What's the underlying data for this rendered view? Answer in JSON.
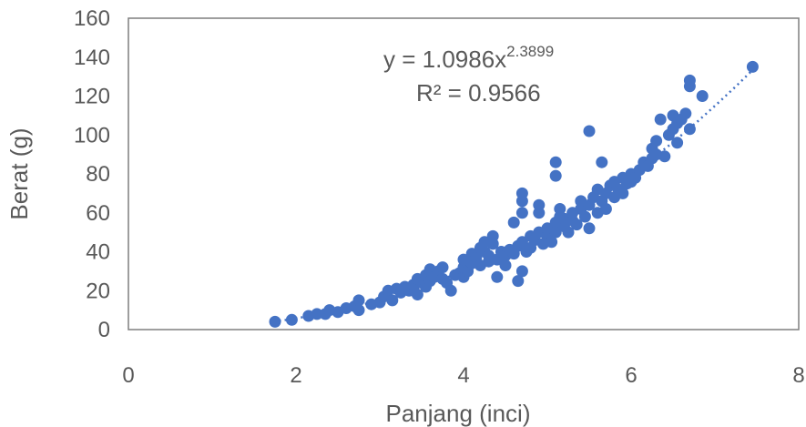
{
  "chart_data": {
    "type": "scatter",
    "title": "",
    "xlabel": "Panjang (inci)",
    "ylabel": "Berat (g)",
    "xlim": [
      0,
      8
    ],
    "ylim": [
      0,
      160
    ],
    "x_ticks": [
      "0",
      "2",
      "4",
      "6",
      "8"
    ],
    "y_ticks": [
      "0",
      "20",
      "40",
      "60",
      "80",
      "100",
      "120",
      "140",
      "160"
    ],
    "grid": false,
    "legend": "none",
    "marker_color": "#4472C4",
    "trendline": {
      "type": "power",
      "coefficient": 1.0986,
      "exponent": 2.3899,
      "x_range": [
        1.8,
        7.45
      ],
      "style": "dotted",
      "color": "#4472C4",
      "equation_label": {
        "base": "y = 1.0986x",
        "sup": "2.3899"
      },
      "r2_label": "R² = 0.9566"
    },
    "series": [
      {
        "points": [
          [
            1.75,
            4
          ],
          [
            1.95,
            5
          ],
          [
            2.15,
            7
          ],
          [
            2.25,
            8
          ],
          [
            2.35,
            8
          ],
          [
            2.4,
            10
          ],
          [
            2.5,
            9
          ],
          [
            2.6,
            11
          ],
          [
            2.7,
            12
          ],
          [
            2.75,
            10
          ],
          [
            2.75,
            15
          ],
          [
            2.9,
            13
          ],
          [
            3.0,
            14
          ],
          [
            3.05,
            17
          ],
          [
            3.1,
            20
          ],
          [
            3.15,
            15
          ],
          [
            3.2,
            21
          ],
          [
            3.25,
            19
          ],
          [
            3.3,
            22
          ],
          [
            3.35,
            20
          ],
          [
            3.4,
            23
          ],
          [
            3.45,
            18
          ],
          [
            3.45,
            26
          ],
          [
            3.5,
            24
          ],
          [
            3.55,
            22
          ],
          [
            3.55,
            28
          ],
          [
            3.6,
            25
          ],
          [
            3.6,
            31
          ],
          [
            3.65,
            27
          ],
          [
            3.7,
            30
          ],
          [
            3.75,
            26
          ],
          [
            3.75,
            32
          ],
          [
            3.8,
            24
          ],
          [
            3.85,
            20
          ],
          [
            3.9,
            28
          ],
          [
            3.95,
            29
          ],
          [
            4.0,
            27
          ],
          [
            4.0,
            32
          ],
          [
            4.0,
            36
          ],
          [
            4.05,
            30
          ],
          [
            4.1,
            34
          ],
          [
            4.1,
            39
          ],
          [
            4.15,
            37
          ],
          [
            4.2,
            33
          ],
          [
            4.2,
            42
          ],
          [
            4.25,
            40
          ],
          [
            4.25,
            45
          ],
          [
            4.3,
            35
          ],
          [
            4.3,
            38
          ],
          [
            4.35,
            44
          ],
          [
            4.35,
            48
          ],
          [
            4.4,
            36
          ],
          [
            4.4,
            27
          ],
          [
            4.45,
            40
          ],
          [
            4.5,
            38
          ],
          [
            4.5,
            33
          ],
          [
            4.55,
            41
          ],
          [
            4.6,
            39
          ],
          [
            4.6,
            55
          ],
          [
            4.65,
            43
          ],
          [
            4.65,
            25
          ],
          [
            4.7,
            45
          ],
          [
            4.7,
            60
          ],
          [
            4.7,
            66
          ],
          [
            4.7,
            70
          ],
          [
            4.7,
            30
          ],
          [
            4.75,
            40
          ],
          [
            4.8,
            48
          ],
          [
            4.8,
            42
          ],
          [
            4.85,
            46
          ],
          [
            4.9,
            50
          ],
          [
            4.9,
            60
          ],
          [
            4.9,
            64
          ],
          [
            4.95,
            44
          ],
          [
            5.0,
            48
          ],
          [
            5.0,
            52
          ],
          [
            5.05,
            45
          ],
          [
            5.1,
            55
          ],
          [
            5.1,
            50
          ],
          [
            5.1,
            86
          ],
          [
            5.1,
            79
          ],
          [
            5.15,
            58
          ],
          [
            5.15,
            62
          ],
          [
            5.2,
            53
          ],
          [
            5.2,
            57
          ],
          [
            5.25,
            50
          ],
          [
            5.3,
            56
          ],
          [
            5.3,
            60
          ],
          [
            5.35,
            54
          ],
          [
            5.4,
            62
          ],
          [
            5.4,
            66
          ],
          [
            5.45,
            58
          ],
          [
            5.5,
            64
          ],
          [
            5.5,
            52
          ],
          [
            5.5,
            102
          ],
          [
            5.55,
            68
          ],
          [
            5.6,
            60
          ],
          [
            5.6,
            72
          ],
          [
            5.65,
            66
          ],
          [
            5.65,
            86
          ],
          [
            5.7,
            70
          ],
          [
            5.7,
            62
          ],
          [
            5.75,
            74
          ],
          [
            5.8,
            68
          ],
          [
            5.8,
            76
          ],
          [
            5.85,
            72
          ],
          [
            5.9,
            70
          ],
          [
            5.9,
            78
          ],
          [
            5.95,
            75
          ],
          [
            6.0,
            76
          ],
          [
            6.0,
            80
          ],
          [
            6.05,
            78
          ],
          [
            6.1,
            82
          ],
          [
            6.15,
            86
          ],
          [
            6.2,
            84
          ],
          [
            6.25,
            88
          ],
          [
            6.25,
            93
          ],
          [
            6.3,
            90
          ],
          [
            6.3,
            97
          ],
          [
            6.35,
            108
          ],
          [
            6.4,
            89
          ],
          [
            6.45,
            100
          ],
          [
            6.5,
            103
          ],
          [
            6.5,
            110
          ],
          [
            6.55,
            96
          ],
          [
            6.55,
            106
          ],
          [
            6.6,
            108
          ],
          [
            6.65,
            111
          ],
          [
            6.7,
            103
          ],
          [
            6.7,
            125
          ],
          [
            6.7,
            128
          ],
          [
            6.85,
            120
          ],
          [
            7.45,
            135
          ]
        ]
      }
    ]
  }
}
